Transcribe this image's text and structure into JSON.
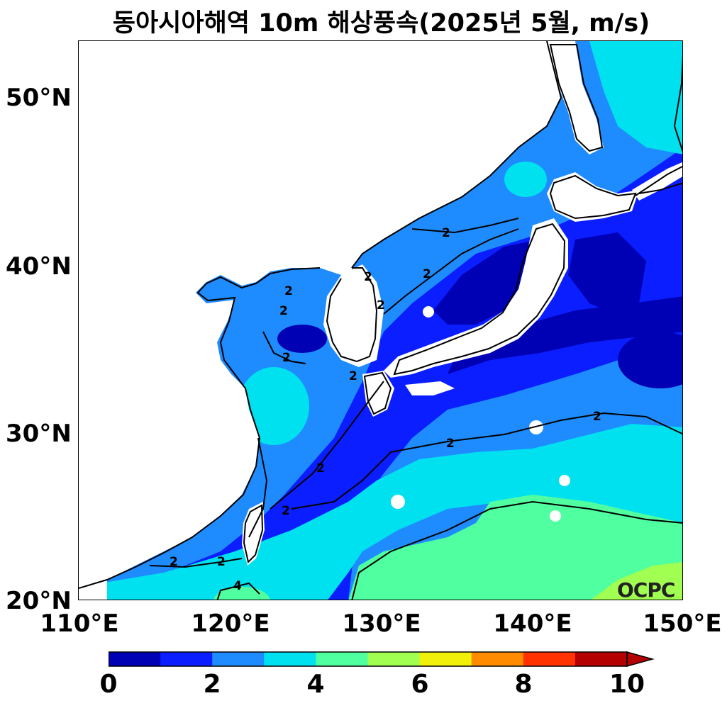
{
  "title": "동아시아해역 10m 해상풍속(2025년 5월, m/s)",
  "watermark": "OCPC",
  "lat_ticks": [
    "50°N",
    "40°N",
    "30°N",
    "20°N"
  ],
  "lon_ticks": [
    "110°E",
    "120°E",
    "130°E",
    "140°E",
    "150°E"
  ],
  "map_extent": {
    "lon": [
      110,
      150
    ],
    "lat": [
      20,
      53.5
    ]
  },
  "colorbar": {
    "unit": "m/s",
    "levels": [
      0,
      1,
      2,
      3,
      4,
      5,
      6,
      7,
      8,
      9,
      10
    ],
    "tick_labels": [
      "0",
      "2",
      "4",
      "6",
      "8",
      "10"
    ],
    "colors": [
      "#0000b4",
      "#0a1eff",
      "#1e8cff",
      "#00e1f0",
      "#50ffa0",
      "#a0ff50",
      "#f0f00a",
      "#ff8c00",
      "#ff3200",
      "#b40000"
    ],
    "extend": "max"
  },
  "contour_labels": [
    "2",
    "2",
    "2",
    "2",
    "2",
    "2",
    "2",
    "2",
    "2",
    "2",
    "2",
    "2",
    "2",
    "2",
    "4"
  ],
  "colors": {
    "land": "#ffffff",
    "coast": "#000000"
  }
}
